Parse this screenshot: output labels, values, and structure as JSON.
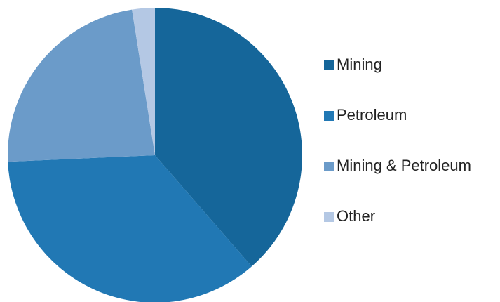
{
  "chart_data": {
    "type": "pie",
    "categories": [
      "Mining",
      "Petroleum",
      "Mining & Petroleum",
      "Other"
    ],
    "values": [
      38.6,
      35.7,
      23.2,
      2.5
    ],
    "colors": [
      "#15669a",
      "#2178b4",
      "#6b9bc9",
      "#b4c8e4"
    ],
    "legend": "right"
  }
}
